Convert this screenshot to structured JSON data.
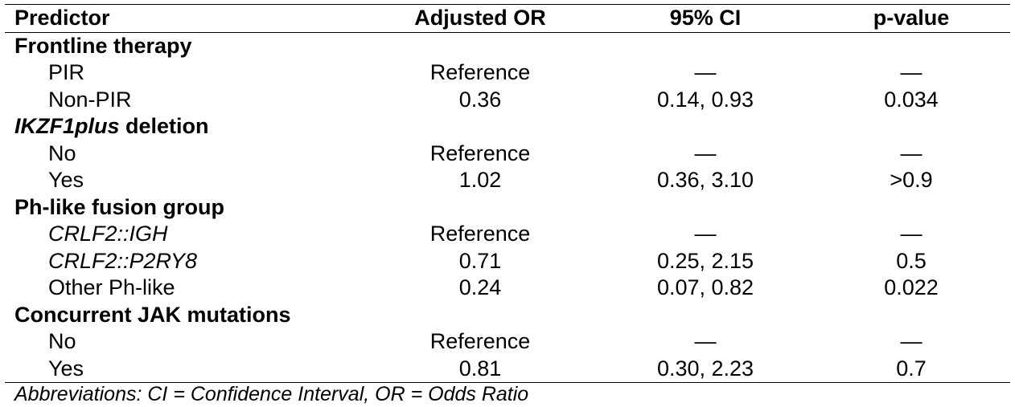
{
  "header": {
    "predictor": "Predictor",
    "adjusted_or": "Adjusted OR",
    "ci": "95% CI",
    "p_value": "p-value"
  },
  "groups": [
    {
      "label": "Frontline therapy",
      "levels": [
        {
          "label": "PIR",
          "or": "Reference",
          "ci": "—",
          "p": "—"
        },
        {
          "label": "Non-PIR",
          "or": "0.36",
          "ci": "0.14, 0.93",
          "p": "0.034"
        }
      ]
    },
    {
      "label_italic": "IKZF1plus",
      "label_rest": " deletion",
      "levels": [
        {
          "label": "No",
          "or": "Reference",
          "ci": "—",
          "p": "—"
        },
        {
          "label": "Yes",
          "or": "1.02",
          "ci": "0.36, 3.10",
          "p": ">0.9"
        }
      ]
    },
    {
      "label": "Ph-like fusion group",
      "levels": [
        {
          "label": "CRLF2::IGH",
          "or": "Reference",
          "ci": "—",
          "p": "—"
        },
        {
          "label": "CRLF2::P2RY8",
          "or": "0.71",
          "ci": "0.25, 2.15",
          "p": "0.5"
        },
        {
          "label": "Other Ph-like",
          "or": "0.24",
          "ci": "0.07, 0.82",
          "p": "0.022"
        }
      ]
    },
    {
      "label": "Concurrent JAK mutations",
      "levels": [
        {
          "label": "No",
          "or": "Reference",
          "ci": "—",
          "p": "—"
        },
        {
          "label": "Yes",
          "or": "0.81",
          "ci": "0.30, 2.23",
          "p": "0.7"
        }
      ]
    }
  ],
  "footnote": "Abbreviations: CI = Confidence Interval, OR = Odds Ratio"
}
